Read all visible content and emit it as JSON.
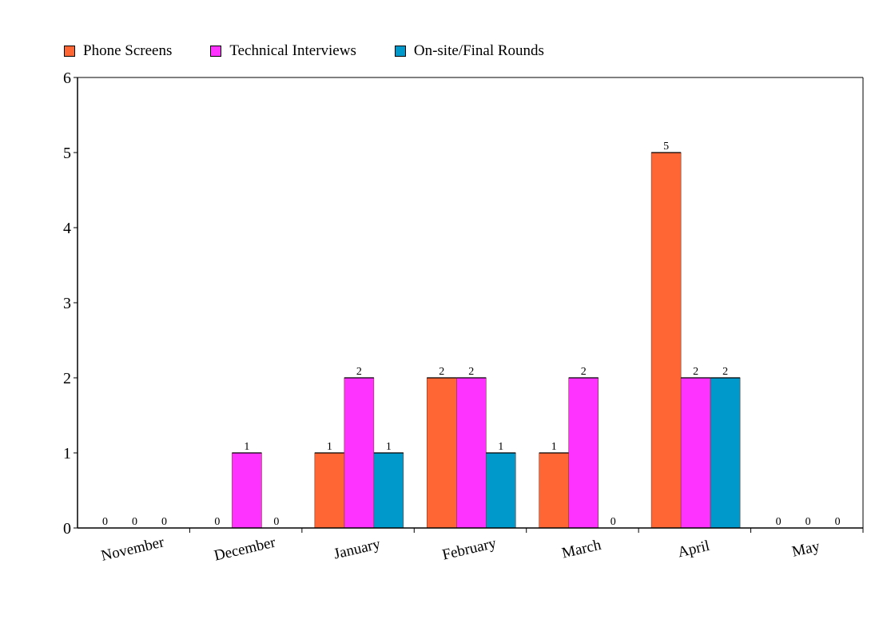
{
  "chart_data": {
    "type": "bar",
    "title": "",
    "xlabel": "",
    "ylabel": "",
    "categories": [
      "November",
      "December",
      "January",
      "February",
      "March",
      "April",
      "May"
    ],
    "series": [
      {
        "name": "Phone Screens",
        "color": "#ff6633",
        "values": [
          0,
          0,
          1,
          2,
          1,
          5,
          0
        ]
      },
      {
        "name": "Technical Interviews",
        "color": "#ff33ff",
        "values": [
          0,
          1,
          2,
          2,
          2,
          2,
          0
        ]
      },
      {
        "name": "On-site/Final Rounds",
        "color": "#0099cc",
        "values": [
          0,
          0,
          1,
          1,
          0,
          2,
          0
        ]
      }
    ],
    "ylim": [
      0,
      6
    ],
    "yticks": [
      "0",
      "1",
      "2",
      "3",
      "4",
      "5",
      "6"
    ],
    "grid": false,
    "legend_position": "top-left",
    "data_labels": true
  }
}
